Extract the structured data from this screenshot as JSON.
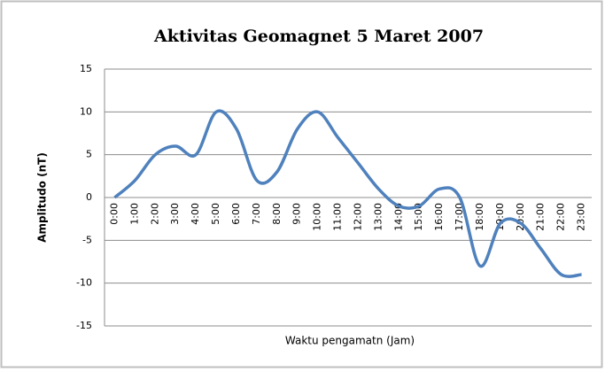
{
  "chart_data": {
    "type": "line",
    "title": "Aktivitas Geomagnet 5 Maret 2007",
    "xlabel": "Waktu pengamatn (Jam)",
    "ylabel": "Amplitudo (nT)",
    "categories": [
      "0:00",
      "1:00",
      "2:00",
      "3:00",
      "4:00",
      "5:00",
      "6:00",
      "7:00",
      "8:00",
      "9:00",
      "10:00",
      "11:00",
      "12:00",
      "13:00",
      "14:00",
      "15:00",
      "16:00",
      "17:00",
      "18:00",
      "19:00",
      "20:00",
      "21:00",
      "22:00",
      "23:00"
    ],
    "series": [
      {
        "color": "#4f81bd",
        "values": [
          0,
          2,
          5,
          6,
          5,
          10,
          8,
          2,
          3,
          8,
          10,
          7,
          4,
          1,
          -1,
          -1,
          1,
          0,
          -8,
          -3,
          -3,
          -6,
          -9,
          -9
        ]
      }
    ],
    "ylim": [
      -15,
      15
    ],
    "yticks": [
      -15,
      -10,
      -5,
      0,
      5,
      10,
      15
    ],
    "grid": true,
    "smooth": true
  }
}
